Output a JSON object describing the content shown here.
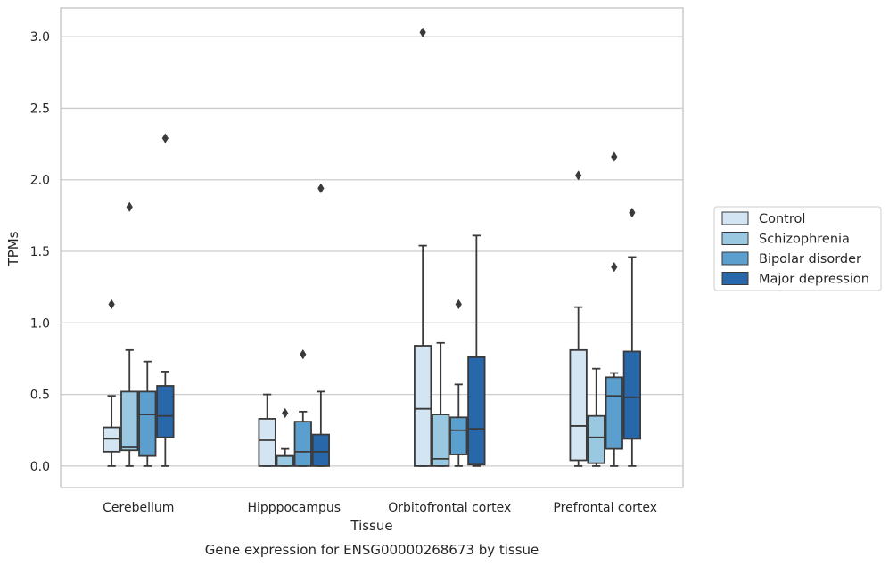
{
  "caption": "Gene expression for ENSG00000268673 by tissue",
  "chart_data": {
    "type": "box",
    "title": "",
    "xlabel": "Tissue",
    "ylabel": "TPMs",
    "ylim": [
      -0.15,
      3.2
    ],
    "yticks": [
      0.0,
      0.5,
      1.0,
      1.5,
      2.0,
      2.5,
      3.0
    ],
    "ytick_labels": [
      "0.0",
      "0.5",
      "1.0",
      "1.5",
      "2.0",
      "2.5",
      "3.0"
    ],
    "grid": "horizontal",
    "legend_position": "right",
    "categories": [
      "Cerebellum",
      "Hipppocampus",
      "Orbitofrontal cortex",
      "Prefrontal cortex"
    ],
    "series": [
      {
        "name": "Control",
        "color": "#d3e4f3",
        "boxes": [
          {
            "whislo": 0.0,
            "q1": 0.1,
            "med": 0.19,
            "q3": 0.27,
            "whishi": 0.49,
            "fliers": [
              1.13
            ]
          },
          {
            "whislo": 0.0,
            "q1": 0.0,
            "med": 0.18,
            "q3": 0.33,
            "whishi": 0.5,
            "fliers": []
          },
          {
            "whislo": 0.0,
            "q1": 0.0,
            "med": 0.4,
            "q3": 0.84,
            "whishi": 1.54,
            "fliers": [
              3.03
            ]
          },
          {
            "whislo": 0.0,
            "q1": 0.04,
            "med": 0.28,
            "q3": 0.81,
            "whishi": 1.11,
            "fliers": [
              2.03
            ]
          }
        ]
      },
      {
        "name": "Schizophrenia",
        "color": "#9ac8e0",
        "boxes": [
          {
            "whislo": 0.0,
            "q1": 0.11,
            "med": 0.13,
            "q3": 0.52,
            "whishi": 0.81,
            "fliers": [
              1.81
            ]
          },
          {
            "whislo": 0.0,
            "q1": 0.0,
            "med": 0.07,
            "q3": 0.07,
            "whishi": 0.12,
            "fliers": [
              0.37
            ]
          },
          {
            "whislo": 0.0,
            "q1": 0.0,
            "med": 0.05,
            "q3": 0.36,
            "whishi": 0.86,
            "fliers": []
          },
          {
            "whislo": 0.0,
            "q1": 0.02,
            "med": 0.2,
            "q3": 0.35,
            "whishi": 0.68,
            "fliers": []
          }
        ]
      },
      {
        "name": "Bipolar disorder",
        "color": "#5a9fcd",
        "boxes": [
          {
            "whislo": 0.0,
            "q1": 0.07,
            "med": 0.36,
            "q3": 0.52,
            "whishi": 0.73,
            "fliers": []
          },
          {
            "whislo": 0.0,
            "q1": 0.0,
            "med": 0.1,
            "q3": 0.31,
            "whishi": 0.38,
            "fliers": [
              0.78
            ]
          },
          {
            "whislo": 0.0,
            "q1": 0.08,
            "med": 0.25,
            "q3": 0.34,
            "whishi": 0.57,
            "fliers": [
              1.13
            ]
          },
          {
            "whislo": 0.0,
            "q1": 0.12,
            "med": 0.49,
            "q3": 0.62,
            "whishi": 0.65,
            "fliers": [
              1.39,
              2.16
            ]
          }
        ]
      },
      {
        "name": "Major depression",
        "color": "#2767aa",
        "boxes": [
          {
            "whislo": 0.0,
            "q1": 0.2,
            "med": 0.35,
            "q3": 0.56,
            "whishi": 0.66,
            "fliers": [
              2.29
            ]
          },
          {
            "whislo": 0.0,
            "q1": 0.0,
            "med": 0.1,
            "q3": 0.22,
            "whishi": 0.52,
            "fliers": [
              1.94
            ]
          },
          {
            "whislo": 0.0,
            "q1": 0.01,
            "med": 0.26,
            "q3": 0.76,
            "whishi": 1.61,
            "fliers": []
          },
          {
            "whislo": 0.0,
            "q1": 0.19,
            "med": 0.48,
            "q3": 0.8,
            "whishi": 1.46,
            "fliers": [
              1.77
            ]
          }
        ]
      }
    ]
  }
}
